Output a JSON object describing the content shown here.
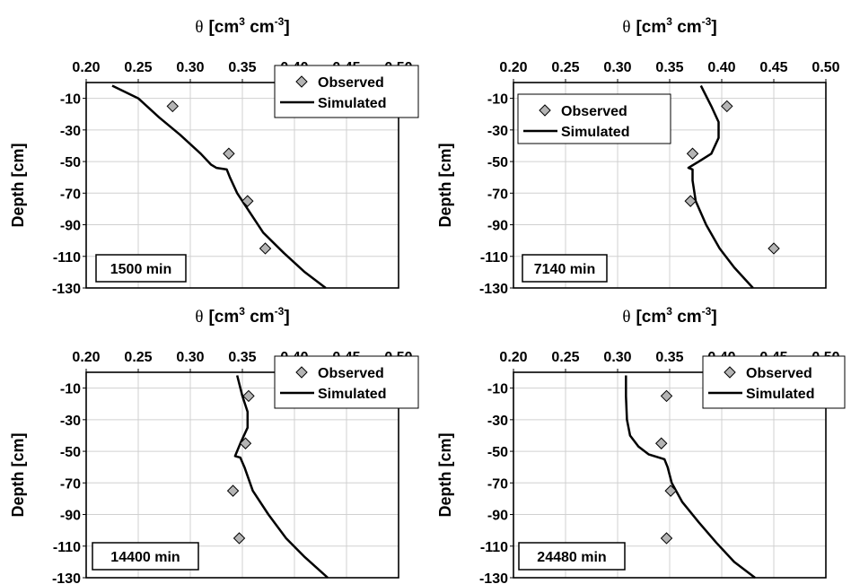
{
  "chart_data": [
    {
      "type": "scatter",
      "panel_label": "1500 min",
      "x_title_sym": "θ",
      "x_title_unit": "[cm",
      "x_title_exp1": "3",
      "x_title_mid": " cm",
      "x_title_exp2": "-3",
      "x_title_end": "]",
      "ylabel": "Depth [cm]",
      "xlim": [
        0.2,
        0.5
      ],
      "ylim": [
        -130,
        0
      ],
      "xticks": [
        "0.20",
        "0.25",
        "0.30",
        "0.35",
        "0.40",
        "0.45",
        "0.50"
      ],
      "yticks": [
        "-10",
        "-30",
        "-50",
        "-70",
        "-90",
        "-110",
        "-130"
      ],
      "legend": {
        "position": "top-right",
        "observed": "Observed",
        "simulated": "Simulated"
      },
      "observed": {
        "name": "Observed",
        "x": [
          0.283,
          0.337,
          0.355,
          0.372
        ],
        "y": [
          -15,
          -45,
          -75,
          -105
        ]
      },
      "simulated": {
        "name": "Simulated",
        "x": [
          0.225,
          0.25,
          0.27,
          0.29,
          0.31,
          0.32,
          0.325,
          0.335,
          0.338,
          0.345,
          0.355,
          0.37,
          0.39,
          0.41,
          0.43
        ],
        "y": [
          -2,
          -10,
          -22,
          -33,
          -45,
          -52,
          -54,
          -55,
          -60,
          -70,
          -80,
          -95,
          -108,
          -120,
          -130
        ]
      }
    },
    {
      "type": "scatter",
      "panel_label": "7140 min",
      "x_title_sym": "θ",
      "x_title_unit": "[cm",
      "x_title_exp1": "3",
      "x_title_mid": " cm",
      "x_title_exp2": "-3",
      "x_title_end": "]",
      "ylabel": "Depth [cm]",
      "xlim": [
        0.2,
        0.5
      ],
      "ylim": [
        -130,
        0
      ],
      "xticks": [
        "0.20",
        "0.25",
        "0.30",
        "0.35",
        "0.40",
        "0.45",
        "0.50"
      ],
      "yticks": [
        "-10",
        "-30",
        "-50",
        "-70",
        "-90",
        "-110",
        "-130"
      ],
      "legend": {
        "position": "top-left",
        "observed": "Observed",
        "simulated": "Simulated"
      },
      "observed": {
        "name": "Observed",
        "x": [
          0.405,
          0.372,
          0.37,
          0.45
        ],
        "y": [
          -15,
          -45,
          -75,
          -105
        ]
      },
      "simulated": {
        "name": "Simulated",
        "x": [
          0.38,
          0.39,
          0.397,
          0.397,
          0.39,
          0.378,
          0.368,
          0.372,
          0.372,
          0.375,
          0.385,
          0.398,
          0.412,
          0.43
        ],
        "y": [
          -2,
          -15,
          -25,
          -35,
          -45,
          -50,
          -54,
          -55,
          -62,
          -75,
          -90,
          -105,
          -117,
          -130
        ]
      }
    },
    {
      "type": "scatter",
      "panel_label": "14400 min",
      "x_title_sym": "θ",
      "x_title_unit": "[cm",
      "x_title_exp1": "3",
      "x_title_mid": " cm",
      "x_title_exp2": "-3",
      "x_title_end": "]",
      "ylabel": "Depth [cm]",
      "xlim": [
        0.2,
        0.5
      ],
      "ylim": [
        -130,
        0
      ],
      "xticks": [
        "0.20",
        "0.25",
        "0.30",
        "0.35",
        "0.40",
        "0.45",
        "0.50"
      ],
      "yticks": [
        "-10",
        "-30",
        "-50",
        "-70",
        "-90",
        "-110",
        "-130"
      ],
      "legend": {
        "position": "top-right",
        "observed": "Observed",
        "simulated": "Simulated"
      },
      "observed": {
        "name": "Observed",
        "x": [
          0.356,
          0.353,
          0.341,
          0.347
        ],
        "y": [
          -15,
          -45,
          -75,
          -105
        ]
      },
      "simulated": {
        "name": "Simulated",
        "x": [
          0.345,
          0.35,
          0.355,
          0.355,
          0.348,
          0.343,
          0.348,
          0.352,
          0.36,
          0.375,
          0.392,
          0.41,
          0.432
        ],
        "y": [
          -2,
          -15,
          -25,
          -35,
          -45,
          -53,
          -54,
          -60,
          -75,
          -90,
          -105,
          -117,
          -130
        ]
      }
    },
    {
      "type": "scatter",
      "panel_label": "24480 min",
      "x_title_sym": "θ",
      "x_title_unit": "[cm",
      "x_title_exp1": "3",
      "x_title_mid": " cm",
      "x_title_exp2": "-3",
      "x_title_end": "]",
      "ylabel": "Depth [cm]",
      "xlim": [
        0.2,
        0.5
      ],
      "ylim": [
        -130,
        0
      ],
      "xticks": [
        "0.20",
        "0.25",
        "0.30",
        "0.35",
        "0.40",
        "0.45",
        "0.50"
      ],
      "yticks": [
        "-10",
        "-30",
        "-50",
        "-70",
        "-90",
        "-110",
        "-130"
      ],
      "legend": {
        "position": "top-right",
        "observed": "Observed",
        "simulated": "Simulated"
      },
      "observed": {
        "name": "Observed",
        "x": [
          0.347,
          0.342,
          0.351,
          0.347
        ],
        "y": [
          -15,
          -45,
          -75,
          -105
        ]
      },
      "simulated": {
        "name": "Simulated",
        "x": [
          0.308,
          0.308,
          0.309,
          0.312,
          0.32,
          0.33,
          0.345,
          0.348,
          0.352,
          0.362,
          0.378,
          0.395,
          0.412,
          0.432
        ],
        "y": [
          -2,
          -15,
          -30,
          -40,
          -47,
          -52,
          -55,
          -60,
          -70,
          -82,
          -95,
          -108,
          -120,
          -130
        ]
      }
    }
  ],
  "colors": {
    "grid": "#d0d0d0",
    "marker_fill": "#b4b4b4",
    "line": "#000000"
  }
}
